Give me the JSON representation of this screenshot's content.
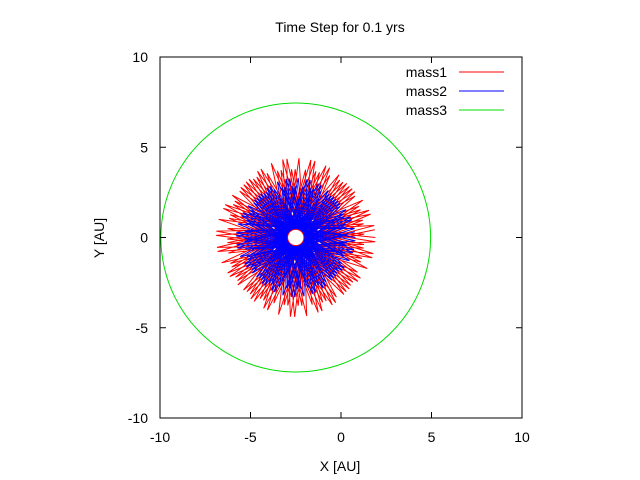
{
  "chart_data": {
    "type": "line",
    "title": "Time Step for 0.1 yrs",
    "xlabel": "X [AU]",
    "ylabel": "Y [AU]",
    "xlim": [
      -10,
      10
    ],
    "ylim": [
      -10,
      10
    ],
    "xticks": [
      "-10",
      "-5",
      "0",
      "5",
      "10"
    ],
    "yticks": [
      "-10",
      "-5",
      "0",
      "5",
      "10"
    ],
    "grid": false,
    "legend_position": "top-right",
    "series": [
      {
        "name": "mass1",
        "color": "#ff0000",
        "shape": "rosette",
        "center": [
          -2.5,
          0
        ],
        "outer_radius": 4.4,
        "inner_radius": 0.6
      },
      {
        "name": "mass2",
        "color": "#0000ff",
        "shape": "rosette",
        "center": [
          -2.5,
          0
        ],
        "outer_radius": 3.3,
        "inner_radius": 0.7
      },
      {
        "name": "mass3",
        "color": "#00dd00",
        "shape": "circle",
        "center": [
          -2.5,
          0
        ],
        "radius": 7.45
      }
    ]
  }
}
